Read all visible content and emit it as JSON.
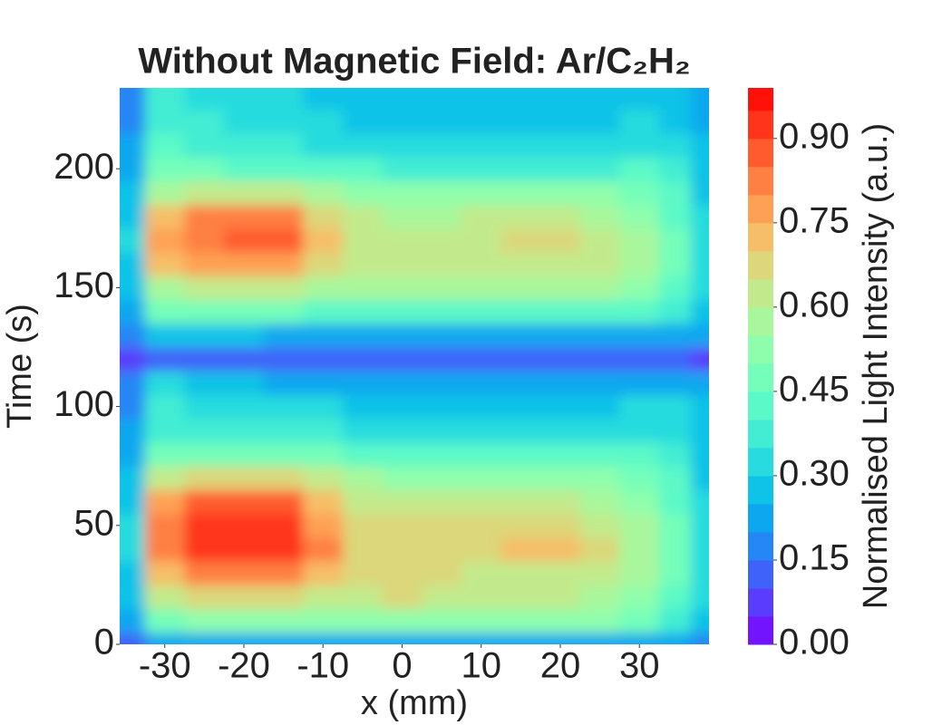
{
  "chart_data": {
    "type": "contour",
    "title": "Without Magnetic Field: Ar/C₂H₂",
    "x_label": "x (mm)",
    "y_label": "Time (s)",
    "colorbar_label": "Normalised Light Intensity (a.u.)",
    "colormap": "rainbow",
    "x": [
      -35,
      -30,
      -25,
      -20,
      -15,
      -10,
      -5,
      0,
      5,
      10,
      15,
      20,
      25,
      30,
      35,
      38
    ],
    "y": [
      0,
      10,
      20,
      30,
      40,
      50,
      60,
      70,
      80,
      90,
      100,
      110,
      120,
      130,
      140,
      150,
      160,
      170,
      180,
      190,
      200,
      210,
      220,
      230
    ],
    "z": [
      [
        0.12,
        0.2,
        0.22,
        0.22,
        0.22,
        0.22,
        0.22,
        0.22,
        0.22,
        0.22,
        0.22,
        0.22,
        0.22,
        0.22,
        0.2,
        0.15
      ],
      [
        0.2,
        0.45,
        0.5,
        0.5,
        0.5,
        0.5,
        0.5,
        0.52,
        0.52,
        0.52,
        0.52,
        0.5,
        0.5,
        0.45,
        0.38,
        0.28
      ],
      [
        0.25,
        0.6,
        0.65,
        0.65,
        0.65,
        0.62,
        0.62,
        0.65,
        0.63,
        0.6,
        0.6,
        0.6,
        0.58,
        0.52,
        0.42,
        0.3
      ],
      [
        0.28,
        0.72,
        0.8,
        0.8,
        0.8,
        0.72,
        0.66,
        0.66,
        0.65,
        0.62,
        0.63,
        0.63,
        0.6,
        0.55,
        0.45,
        0.3
      ],
      [
        0.3,
        0.82,
        0.9,
        0.92,
        0.94,
        0.8,
        0.68,
        0.67,
        0.66,
        0.68,
        0.7,
        0.72,
        0.66,
        0.57,
        0.46,
        0.3
      ],
      [
        0.3,
        0.82,
        0.9,
        0.9,
        0.92,
        0.78,
        0.67,
        0.66,
        0.65,
        0.66,
        0.67,
        0.68,
        0.64,
        0.56,
        0.45,
        0.3
      ],
      [
        0.28,
        0.78,
        0.85,
        0.86,
        0.86,
        0.72,
        0.62,
        0.6,
        0.6,
        0.6,
        0.6,
        0.6,
        0.58,
        0.53,
        0.43,
        0.3
      ],
      [
        0.25,
        0.6,
        0.66,
        0.66,
        0.66,
        0.6,
        0.55,
        0.53,
        0.52,
        0.52,
        0.52,
        0.52,
        0.5,
        0.48,
        0.4,
        0.28
      ],
      [
        0.22,
        0.45,
        0.48,
        0.48,
        0.48,
        0.45,
        0.42,
        0.4,
        0.4,
        0.4,
        0.4,
        0.4,
        0.4,
        0.4,
        0.35,
        0.27
      ],
      [
        0.2,
        0.38,
        0.38,
        0.36,
        0.36,
        0.35,
        0.33,
        0.32,
        0.32,
        0.32,
        0.32,
        0.32,
        0.32,
        0.33,
        0.32,
        0.26
      ],
      [
        0.18,
        0.35,
        0.34,
        0.32,
        0.31,
        0.3,
        0.29,
        0.28,
        0.28,
        0.28,
        0.28,
        0.28,
        0.28,
        0.3,
        0.3,
        0.25
      ],
      [
        0.15,
        0.3,
        0.28,
        0.25,
        0.24,
        0.22,
        0.21,
        0.2,
        0.2,
        0.2,
        0.2,
        0.2,
        0.2,
        0.22,
        0.22,
        0.2
      ],
      [
        0.05,
        0.12,
        0.12,
        0.12,
        0.12,
        0.12,
        0.12,
        0.12,
        0.12,
        0.12,
        0.12,
        0.12,
        0.12,
        0.12,
        0.1,
        0.08
      ],
      [
        0.15,
        0.28,
        0.26,
        0.25,
        0.24,
        0.22,
        0.22,
        0.22,
        0.22,
        0.22,
        0.22,
        0.22,
        0.22,
        0.24,
        0.24,
        0.2
      ],
      [
        0.22,
        0.45,
        0.45,
        0.45,
        0.45,
        0.43,
        0.42,
        0.42,
        0.42,
        0.42,
        0.42,
        0.42,
        0.42,
        0.42,
        0.38,
        0.27
      ],
      [
        0.25,
        0.58,
        0.62,
        0.62,
        0.62,
        0.57,
        0.55,
        0.55,
        0.55,
        0.55,
        0.55,
        0.55,
        0.55,
        0.52,
        0.43,
        0.3
      ],
      [
        0.28,
        0.7,
        0.78,
        0.78,
        0.78,
        0.66,
        0.62,
        0.6,
        0.6,
        0.62,
        0.63,
        0.64,
        0.6,
        0.55,
        0.45,
        0.3
      ],
      [
        0.3,
        0.76,
        0.84,
        0.85,
        0.85,
        0.7,
        0.63,
        0.62,
        0.62,
        0.64,
        0.66,
        0.67,
        0.62,
        0.56,
        0.45,
        0.3
      ],
      [
        0.28,
        0.72,
        0.8,
        0.8,
        0.8,
        0.66,
        0.6,
        0.58,
        0.58,
        0.6,
        0.6,
        0.6,
        0.58,
        0.53,
        0.43,
        0.3
      ],
      [
        0.25,
        0.58,
        0.6,
        0.6,
        0.6,
        0.55,
        0.52,
        0.5,
        0.5,
        0.5,
        0.5,
        0.5,
        0.5,
        0.48,
        0.4,
        0.28
      ],
      [
        0.22,
        0.45,
        0.45,
        0.44,
        0.44,
        0.42,
        0.4,
        0.38,
        0.38,
        0.38,
        0.38,
        0.38,
        0.38,
        0.4,
        0.35,
        0.27
      ],
      [
        0.2,
        0.4,
        0.38,
        0.36,
        0.35,
        0.33,
        0.32,
        0.3,
        0.3,
        0.3,
        0.3,
        0.3,
        0.3,
        0.33,
        0.3,
        0.25
      ],
      [
        0.18,
        0.38,
        0.36,
        0.33,
        0.32,
        0.3,
        0.29,
        0.28,
        0.28,
        0.28,
        0.28,
        0.28,
        0.28,
        0.3,
        0.28,
        0.24
      ],
      [
        0.18,
        0.36,
        0.34,
        0.32,
        0.31,
        0.29,
        0.28,
        0.27,
        0.27,
        0.27,
        0.27,
        0.27,
        0.27,
        0.29,
        0.27,
        0.23
      ]
    ],
    "levels": [
      0,
      0.05,
      0.1,
      0.15,
      0.2,
      0.25,
      0.3,
      0.35,
      0.4,
      0.45,
      0.5,
      0.55,
      0.6,
      0.65,
      0.7,
      0.75,
      0.8,
      0.85,
      0.9,
      0.95
    ],
    "clim": [
      0,
      0.99
    ],
    "cticks": [
      {
        "value": 0,
        "label": "0.00"
      },
      {
        "value": 0.15,
        "label": "0.15"
      },
      {
        "value": 0.3,
        "label": "0.30"
      },
      {
        "value": 0.45,
        "label": "0.45"
      },
      {
        "value": 0.6,
        "label": "0.60"
      },
      {
        "value": 0.75,
        "label": "0.75"
      },
      {
        "value": 0.9,
        "label": "0.90"
      }
    ],
    "xlim": [
      -35.7,
      38.8
    ],
    "xticks": [
      -30,
      -20,
      -10,
      0,
      10,
      20,
      30
    ],
    "ylim": [
      0,
      234
    ],
    "yticks": [
      0,
      50,
      100,
      150,
      200
    ]
  }
}
